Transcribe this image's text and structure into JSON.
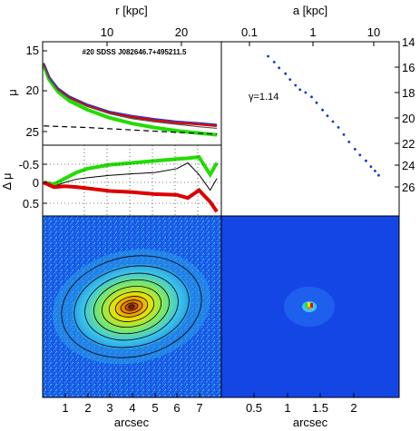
{
  "chart_data": [
    {
      "panel": "surface-brightness-profile",
      "type": "line",
      "title": "#20 SDSS J082646.7+495211.5",
      "top_axis_label": "r [kpc]",
      "top_ticks": [
        "10",
        "20"
      ],
      "ylabel": "μ",
      "yticks": [
        "15",
        "20",
        "25"
      ],
      "ylim": [
        26,
        14
      ],
      "series": [
        {
          "color": "#22dd00",
          "x": [
            0.05,
            0.3,
            0.7,
            1.2,
            2,
            3,
            4,
            5,
            6,
            7,
            7.8
          ],
          "y": [
            16.8,
            18.6,
            20.1,
            21.2,
            22.3,
            23.3,
            24.0,
            24.5,
            24.9,
            25.2,
            25.4
          ]
        },
        {
          "color": "#dd0000",
          "x": [
            0.05,
            0.3,
            0.7,
            1.2,
            2,
            3,
            4,
            5,
            6,
            7,
            7.8
          ],
          "y": [
            16.6,
            18.3,
            19.8,
            20.8,
            21.8,
            22.7,
            23.2,
            23.6,
            23.9,
            24.1,
            24.3
          ]
        },
        {
          "color": "#2233cc",
          "x": [
            0.05,
            0.3,
            0.7,
            1.2,
            2,
            3,
            4,
            5,
            6,
            7,
            7.8
          ],
          "y": [
            16.5,
            18.2,
            19.6,
            20.6,
            21.6,
            22.5,
            23.0,
            23.4,
            23.7,
            23.9,
            24.1
          ]
        },
        {
          "color": "#555555",
          "x": [
            0.05,
            0.3,
            0.7,
            1.2,
            2,
            3,
            4,
            5,
            6,
            7,
            7.8
          ],
          "y": [
            16.7,
            18.4,
            19.9,
            20.9,
            21.9,
            22.8,
            23.4,
            23.8,
            24.1,
            24.4,
            24.6
          ]
        },
        {
          "color": "#000000",
          "dash": true,
          "x": [
            0.05,
            2,
            4,
            6,
            7.8
          ],
          "y": [
            24.3,
            24.5,
            24.8,
            25.1,
            25.3
          ]
        }
      ]
    },
    {
      "panel": "residuals",
      "type": "line",
      "ylabel": "Δ μ",
      "yticks": [
        "-0.5",
        "0",
        "0.5"
      ],
      "ylim": [
        0.75,
        -0.75
      ],
      "series": [
        {
          "color": "#22dd00",
          "x": [
            0.05,
            0.5,
            1,
            1.5,
            2,
            3,
            4,
            5,
            6,
            6.5,
            7,
            7.5,
            7.8
          ],
          "y": [
            0.0,
            0.05,
            -0.1,
            -0.25,
            -0.35,
            -0.45,
            -0.5,
            -0.55,
            -0.6,
            -0.62,
            -0.65,
            -0.2,
            -0.5
          ]
        },
        {
          "color": "#000000",
          "x": [
            0.05,
            0.5,
            1,
            1.5,
            2,
            3,
            4,
            5,
            6,
            6.5,
            7,
            7.5,
            7.8
          ],
          "y": [
            0.05,
            0.1,
            0.0,
            -0.08,
            -0.12,
            -0.18,
            -0.22,
            -0.25,
            -0.35,
            -0.5,
            -0.2,
            0.2,
            -0.1
          ]
        },
        {
          "color": "#dd0000",
          "x": [
            0.05,
            0.5,
            1,
            1.5,
            2,
            3,
            4,
            5,
            6,
            6.5,
            7,
            7.5,
            7.8
          ],
          "y": [
            0.0,
            0.12,
            0.1,
            0.12,
            0.15,
            0.22,
            0.25,
            0.3,
            0.32,
            0.4,
            0.2,
            0.5,
            0.75
          ]
        }
      ]
    },
    {
      "panel": "gamma-profile",
      "type": "scatter",
      "top_axis_label": "a [kpc]",
      "top_ticks": [
        "0.1",
        "1",
        "10"
      ],
      "right_ticks": [
        "14",
        "16",
        "18",
        "20",
        "22",
        "24",
        "26"
      ],
      "annotation": "γ=1.14",
      "color": "#1133cc",
      "x_log": true,
      "x": [
        0.2,
        0.25,
        0.3,
        0.38,
        0.45,
        0.55,
        0.65,
        0.8,
        1.0,
        1.2,
        1.5,
        1.8,
        2.2,
        2.7,
        3.3,
        4.0,
        5.0,
        6.0,
        7.5,
        9.0,
        10.5,
        12.0
      ],
      "y": [
        15.0,
        15.4,
        15.8,
        16.2,
        16.6,
        17.0,
        17.3,
        17.5,
        17.8,
        18.2,
        18.7,
        19.1,
        19.5,
        19.9,
        20.4,
        20.9,
        21.4,
        21.8,
        22.2,
        22.6,
        22.9,
        23.2
      ]
    },
    {
      "panel": "galaxy-image",
      "type": "heatmap",
      "xlabel": "arcsec",
      "xticks": [
        "1",
        "2",
        "3",
        "4",
        "5",
        "6",
        "7"
      ]
    },
    {
      "panel": "psf-image",
      "type": "heatmap",
      "xlabel": "arcsec",
      "xticks": [
        "0.5",
        "1",
        "1.5",
        "2"
      ]
    }
  ]
}
